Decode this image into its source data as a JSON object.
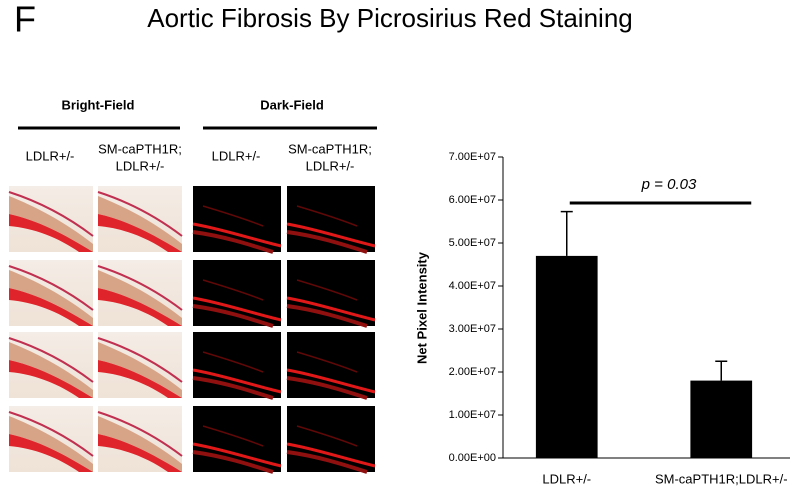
{
  "panel_label": "F",
  "title": "Aortic Fibrosis By Picrosirius Red Staining",
  "micrographs": {
    "groups": [
      {
        "label": "Bright-Field",
        "columns": [
          [
            "LDLR+/-"
          ],
          [
            "SM-caPTH1R;",
            "LDLR+/-"
          ]
        ]
      },
      {
        "label": "Dark-Field",
        "columns": [
          [
            "LDLR+/-"
          ],
          [
            "SM-caPTH1R;",
            "LDLR+/-"
          ]
        ]
      }
    ]
  },
  "chart_data": {
    "type": "bar",
    "y_label": "Net Pixel Intensity",
    "categories": [
      "LDLR+/-",
      "SM-caPTH1R;LDLR+/-"
    ],
    "values": [
      47000000,
      18000000
    ],
    "errors": [
      10300000,
      4500000
    ],
    "color": "#000000",
    "ylim": [
      0,
      70000000
    ],
    "yticks": [
      {
        "value": 0,
        "label": "0.00E+00"
      },
      {
        "value": 10000000,
        "label": "1.00E+07"
      },
      {
        "value": 20000000,
        "label": "2.00E+07"
      },
      {
        "value": 30000000,
        "label": "3.00E+07"
      },
      {
        "value": 40000000,
        "label": "4.00E+07"
      },
      {
        "value": 50000000,
        "label": "5.00E+07"
      },
      {
        "value": 60000000,
        "label": "6.00E+07"
      },
      {
        "value": 70000000,
        "label": "7.00E+07"
      }
    ],
    "annotation": "p = 0.03"
  }
}
